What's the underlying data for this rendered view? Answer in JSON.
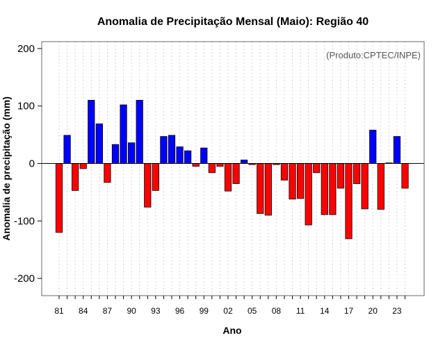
{
  "chart_data": {
    "type": "bar",
    "title": "Anomalia de Precipitação Mensal (Maio): Região 40",
    "xlabel": "Ano",
    "ylabel": "Anomalia de precipitação (mm)",
    "annotation": "(Produto:CPTEC/INPE)",
    "ylim": [
      -230,
      212
    ],
    "yticks": [
      -200,
      -100,
      0,
      100,
      200
    ],
    "xtick_labels": [
      "81",
      "84",
      "87",
      "90",
      "93",
      "96",
      "99",
      "02",
      "05",
      "08",
      "11",
      "14",
      "17",
      "20",
      "23"
    ],
    "years": [
      1981,
      1982,
      1983,
      1984,
      1985,
      1986,
      1987,
      1988,
      1989,
      1990,
      1991,
      1992,
      1993,
      1994,
      1995,
      1996,
      1997,
      1998,
      1999,
      2000,
      2001,
      2002,
      2003,
      2004,
      2005,
      2006,
      2007,
      2008,
      2009,
      2010,
      2011,
      2012,
      2013,
      2014,
      2015,
      2016,
      2017,
      2018,
      2019,
      2020,
      2021,
      2022,
      2023,
      2024
    ],
    "values": [
      -120,
      49,
      -47,
      -9,
      110,
      69,
      -33,
      33,
      102,
      36,
      110,
      -76,
      -47,
      47,
      49,
      29,
      22,
      -5,
      27,
      -16,
      -5,
      -48,
      -35,
      6,
      -2,
      -87,
      -90,
      -2,
      -29,
      -62,
      -61,
      -107,
      -16,
      -89,
      -89,
      -43,
      -131,
      -35,
      -79,
      58,
      -80,
      1,
      47,
      -43
    ],
    "colors": {
      "positive": "#0000ff",
      "negative": "#ff0000",
      "grid": "#d3d3d3",
      "frame": "#666666",
      "zero_line": "#000000"
    },
    "grid": true,
    "legend": "none"
  }
}
